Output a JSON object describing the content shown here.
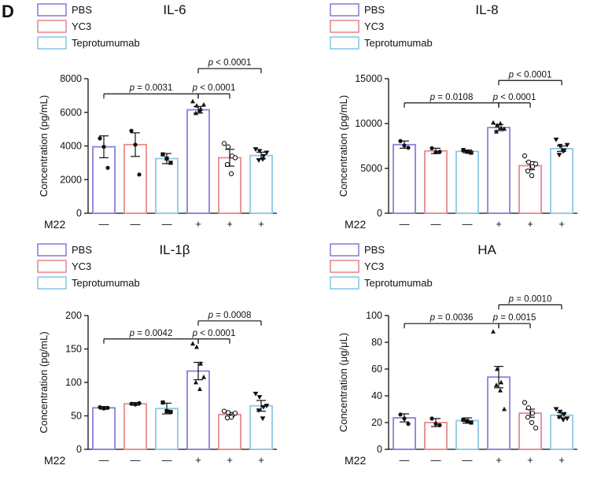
{
  "panel_label": "D",
  "legend": [
    {
      "label": "PBS",
      "color": "#8b80de"
    },
    {
      "label": "YC3",
      "color": "#e88a8e"
    },
    {
      "label": "Teprotumumab",
      "color": "#8ec8e6"
    }
  ],
  "condition": {
    "label": "M22",
    "signs": [
      "—",
      "—",
      "—",
      "+",
      "+",
      "+"
    ]
  },
  "chart_data": [
    {
      "type": "bar",
      "title": "IL-6",
      "ylabel": "Concentration (pg/mL)",
      "ylim": [
        0,
        8000
      ],
      "yticks": [
        0,
        2000,
        4000,
        6000,
        8000
      ],
      "ytick_labels": [
        "0",
        "2000",
        "4000",
        "6000",
        "8000"
      ],
      "bar_colors": [
        "#8b80de",
        "#e88a8e",
        "#8ec8e6",
        "#8b80de",
        "#e88a8e",
        "#8ec8e6"
      ],
      "values": [
        3950,
        4080,
        3250,
        6150,
        3300,
        3430
      ],
      "errors": [
        650,
        700,
        300,
        200,
        500,
        200
      ],
      "points": [
        [
          4450,
          3950,
          2700
        ],
        [
          4900,
          4080,
          2300
        ],
        [
          3500,
          3250,
          3000
        ],
        [
          6650,
          6400,
          6200,
          5950,
          6100,
          6450
        ],
        [
          4150,
          3950,
          3400,
          2900,
          2350,
          3300
        ],
        [
          3800,
          3700,
          3400,
          3150,
          3200,
          3600
        ]
      ],
      "point_markers": [
        "dot",
        "dot",
        "square",
        "triangle",
        "circle",
        "invtriangle"
      ],
      "brackets": [
        {
          "from": 0,
          "to": 3,
          "label": "p = 0.0031",
          "y": 7100
        },
        {
          "from": 3,
          "to": 4,
          "label": "p < 0.0001",
          "y": 7100
        },
        {
          "from": 3,
          "to": 5,
          "label": "p < 0.0001",
          "y": 8600
        }
      ]
    },
    {
      "type": "bar",
      "title": "IL-8",
      "ylabel": "Concentration (pg/mL)",
      "ylim": [
        0,
        15000
      ],
      "yticks": [
        0,
        5000,
        10000,
        15000
      ],
      "ytick_labels": [
        "0",
        "5000",
        "10000",
        "15000"
      ],
      "bar_colors": [
        "#8b80de",
        "#e88a8e",
        "#8ec8e6",
        "#8b80de",
        "#e88a8e",
        "#8ec8e6"
      ],
      "values": [
        7650,
        6950,
        6900,
        9550,
        5300,
        7200
      ],
      "errors": [
        400,
        300,
        150,
        350,
        450,
        300
      ],
      "points": [
        [
          8050,
          7550,
          7300
        ],
        [
          7250,
          6800,
          6850
        ],
        [
          7050,
          6850,
          6750
        ],
        [
          10100,
          9800,
          9500,
          9100,
          10000,
          9400
        ],
        [
          6400,
          5700,
          5200,
          4700,
          4200,
          5500
        ],
        [
          8200,
          7500,
          7000,
          6500,
          6900,
          7600
        ]
      ],
      "point_markers": [
        "dot",
        "dot",
        "square",
        "triangle",
        "circle",
        "invtriangle"
      ],
      "brackets": [
        {
          "from": 0,
          "to": 3,
          "label": "p = 0.0108",
          "y": 12300
        },
        {
          "from": 3,
          "to": 4,
          "label": "p < 0.0001",
          "y": 12300
        },
        {
          "from": 3,
          "to": 5,
          "label": "p < 0.0001",
          "y": 14800
        }
      ]
    },
    {
      "type": "bar",
      "title": "IL-1β",
      "ylabel": "Concentration (pg/mL)",
      "ylim": [
        0,
        200
      ],
      "yticks": [
        0,
        50,
        100,
        150,
        200
      ],
      "ytick_labels": [
        "0",
        "50",
        "100",
        "150",
        "200"
      ],
      "bar_colors": [
        "#8b80de",
        "#e88a8e",
        "#8ec8e6",
        "#8b80de",
        "#e88a8e",
        "#8ec8e6"
      ],
      "values": [
        62,
        68,
        61,
        117,
        52,
        65
      ],
      "errors": [
        2,
        2,
        8,
        13,
        3,
        8
      ],
      "points": [
        [
          63,
          61,
          62
        ],
        [
          68,
          67,
          69
        ],
        [
          70,
          57,
          56
        ],
        [
          158,
          153,
          128,
          100,
          90,
          108
        ],
        [
          57,
          55,
          50,
          47,
          48,
          54
        ],
        [
          83,
          78,
          63,
          58,
          46,
          65
        ]
      ],
      "point_markers": [
        "dot",
        "dot",
        "square",
        "triangle",
        "circle",
        "invtriangle"
      ],
      "brackets": [
        {
          "from": 0,
          "to": 3,
          "label": "p = 0.0042",
          "y": 165
        },
        {
          "from": 3,
          "to": 4,
          "label": "p < 0.0001",
          "y": 165
        },
        {
          "from": 3,
          "to": 5,
          "label": "p = 0.0008",
          "y": 192
        }
      ]
    },
    {
      "type": "bar",
      "title": "HA",
      "ylabel": "Concentration (μg/μL)",
      "ylim": [
        0,
        100
      ],
      "yticks": [
        0,
        20,
        40,
        60,
        80,
        100
      ],
      "ytick_labels": [
        "0",
        "20",
        "40",
        "60",
        "80",
        "100"
      ],
      "bar_colors": [
        "#8b80de",
        "#e88a8e",
        "#8ec8e6",
        "#8b80de",
        "#e88a8e",
        "#8ec8e6"
      ],
      "values": [
        23.5,
        20,
        21.5,
        54,
        27,
        25.5
      ],
      "errors": [
        3,
        3,
        2,
        8,
        3,
        2
      ],
      "points": [
        [
          26,
          23,
          19
        ],
        [
          23,
          19,
          18
        ],
        [
          22,
          21,
          20
        ],
        [
          88,
          60,
          50,
          48,
          44,
          30
        ],
        [
          35,
          31,
          27,
          24,
          20,
          16
        ],
        [
          30,
          28,
          26,
          24,
          22,
          23
        ]
      ],
      "point_markers": [
        "dot",
        "dot",
        "square",
        "triangle",
        "circle",
        "invtriangle"
      ],
      "brackets": [
        {
          "from": 0,
          "to": 3,
          "label": "p = 0.0036",
          "y": 94
        },
        {
          "from": 3,
          "to": 4,
          "label": "p = 0.0015",
          "y": 94
        },
        {
          "from": 3,
          "to": 5,
          "label": "p = 0.0010",
          "y": 108
        }
      ]
    }
  ]
}
